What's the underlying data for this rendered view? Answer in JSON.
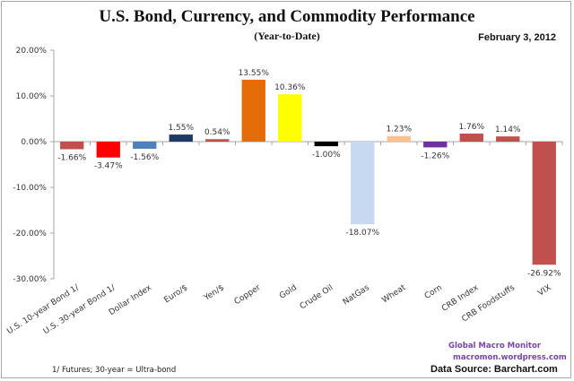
{
  "chart_data": {
    "type": "bar",
    "title": "U.S. Bond, Currency, and Commodity Performance",
    "subtitle": "(Year-to-Date)",
    "date": "February 3, 2012",
    "xlabel": "",
    "ylabel": "",
    "ylim": [
      -30,
      20
    ],
    "yticks": [
      20,
      10,
      0,
      -10,
      -20,
      -30
    ],
    "ytick_labels": [
      "20.00%",
      "10.00%",
      "0.00%",
      "-10.00%",
      "-20.00%",
      "-30.00%"
    ],
    "grid": false,
    "legend": "none",
    "categories": [
      "U.S. 10-year Bond 1/",
      "U.S. 30-year Bond 1/",
      "Dollar Index",
      "Euro/$",
      "Yen/$",
      "Copper",
      "Gold",
      "Crude Oil",
      "NatGas",
      "Wheat",
      "Corn",
      "CRB Index",
      "CRB Foodstuffs",
      "VIX"
    ],
    "values": [
      -1.66,
      -3.47,
      -1.56,
      1.55,
      0.54,
      13.55,
      10.36,
      -1.0,
      -18.07,
      1.23,
      -1.26,
      1.76,
      1.14,
      -26.92
    ],
    "value_labels": [
      "-1.66%",
      "-3.47%",
      "-1.56%",
      "1.55%",
      "0.54%",
      "13.55%",
      "10.36%",
      "-1.00%",
      "-18.07%",
      "1.23%",
      "-1.26%",
      "1.76%",
      "1.14%",
      "-26.92%"
    ],
    "colors": [
      "#c0504d",
      "#ff0000",
      "#4f81bd",
      "#1f3864",
      "#c0504d",
      "#e36c09",
      "#ffff00",
      "#000000",
      "#c6d9f1",
      "#fac090",
      "#7030a0",
      "#c0504d",
      "#c0504d",
      "#c0504d"
    ]
  },
  "footer": {
    "footnote": "1/  Futures; 30-year = Ultra-bond",
    "brand_name": "Global Macro Monitor",
    "brand_url": "macromon.wordpress.com",
    "source": "Data Source:  Barchart.com"
  }
}
